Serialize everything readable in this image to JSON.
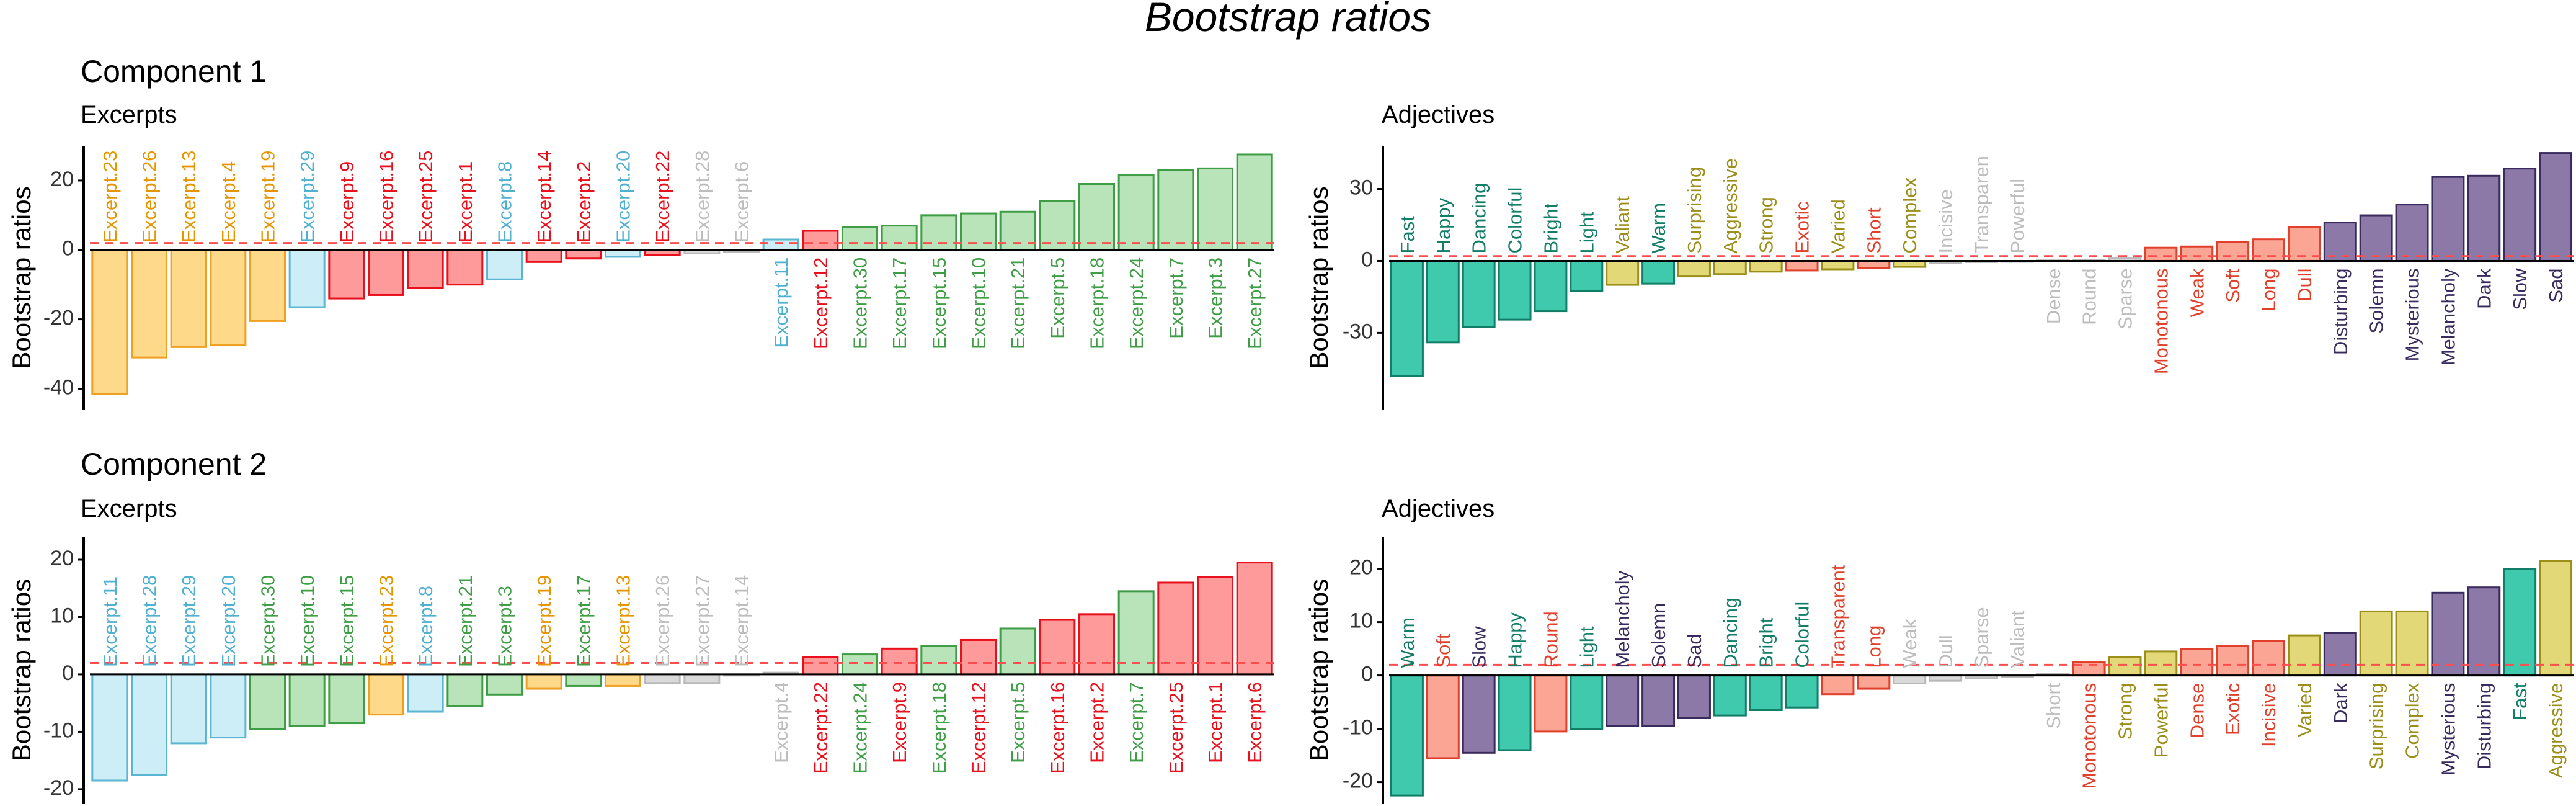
{
  "title": "Bootstrap ratios",
  "colors": {
    "orange": {
      "fill": "#ffd98a",
      "stroke": "#f0a020",
      "text": "#e69500"
    },
    "lightblue": {
      "fill": "#cdeef7",
      "stroke": "#5ab6d3",
      "text": "#4fb0d0"
    },
    "red": {
      "fill": "#ff9a9a",
      "stroke": "#e8101c",
      "text": "#e8101c"
    },
    "green": {
      "fill": "#b9e3b9",
      "stroke": "#3f9e45",
      "text": "#3f9e45"
    },
    "gray": {
      "fill": "#d9d9d9",
      "stroke": "#b8b8b8",
      "text": "#bdbdbd"
    },
    "teal": {
      "fill": "#3fcaae",
      "stroke": "#127e68",
      "text": "#127e68"
    },
    "olive": {
      "fill": "#e3d877",
      "stroke": "#9b8f1a",
      "text": "#9b8f1a"
    },
    "salmon": {
      "fill": "#fba595",
      "stroke": "#e0402c",
      "text": "#e0402c"
    },
    "purple": {
      "fill": "#8c79a8",
      "stroke": "#3a2b5e",
      "text": "#3a2b5e"
    }
  },
  "chart_data": [
    {
      "type": "bar",
      "section_title": "Component 1",
      "title": "Excerpts",
      "ylabel": "Bootstrap ratios",
      "ylim": [
        -46,
        30
      ],
      "yticks": [
        20,
        0,
        -20,
        -40
      ],
      "threshold": 2,
      "categories": [
        "Excerpt.23",
        "Excerpt.26",
        "Excerpt.13",
        "Excerpt.4",
        "Excerpt.19",
        "Excerpt.29",
        "Excerpt.9",
        "Excerpt.16",
        "Excerpt.25",
        "Excerpt.1",
        "Excerpt.8",
        "Excerpt.14",
        "Excerpt.2",
        "Excerpt.20",
        "Excerpt.22",
        "Excerpt.28",
        "Excerpt.6",
        "Excerpt.11",
        "Excerpt.12",
        "Excerpt.30",
        "Excerpt.17",
        "Excerpt.15",
        "Excerpt.10",
        "Excerpt.21",
        "Excerpt.5",
        "Excerpt.18",
        "Excerpt.24",
        "Excerpt.7",
        "Excerpt.3",
        "Excerpt.27"
      ],
      "labels": [
        "Excerpt.23",
        "Excerpt.26",
        "Excerpt.13",
        "Excerpt.4",
        "Excerpt.19",
        "Excerpt.29",
        "Excerpt.9",
        "Excerpt.16",
        "Excerpt.25",
        "Excerpt.1",
        "Excerpt.8",
        "Excerpt.14",
        "Excerpt.2",
        "Excerpt.20",
        "Excerpt.22",
        "Excerpt.28",
        "Excerpt.6",
        "Excerpt.11",
        "Excerpt.12",
        "Excerpt.30",
        "Excerpt.17",
        "Excerpt.15",
        "Excerpt.10",
        "Excerpt.21",
        "Excerpt.5",
        "Excerpt.18",
        "Excerpt.24",
        "Excerpt.7",
        "Excerpt.3",
        "Excerpt.27"
      ],
      "values": [
        -41.5,
        -31,
        -28,
        -27.5,
        -20.5,
        -16.5,
        -14,
        -13,
        -11,
        -10,
        -8.5,
        -3.5,
        -2.5,
        -2,
        -1.5,
        -1,
        -0.5,
        3,
        5.5,
        6.5,
        7,
        10,
        10.5,
        11,
        14,
        19,
        21.5,
        23,
        23.5,
        27.5
      ],
      "groups": [
        "orange",
        "orange",
        "orange",
        "orange",
        "orange",
        "lightblue",
        "red",
        "red",
        "red",
        "red",
        "lightblue",
        "red",
        "red",
        "lightblue",
        "red",
        "gray",
        "gray",
        "lightblue",
        "red",
        "green",
        "green",
        "green",
        "green",
        "green",
        "green",
        "green",
        "green",
        "green",
        "green",
        "green"
      ]
    },
    {
      "type": "bar",
      "title": "Adjectives",
      "ylabel": "Bootstrap ratios",
      "ylim": [
        -62,
        48
      ],
      "yticks": [
        30,
        0,
        -30
      ],
      "threshold": 2,
      "categories": [
        "Fast",
        "Happy",
        "Dancing",
        "Colorful",
        "Bright",
        "Light",
        "Valiant",
        "Warm",
        "Surprising",
        "Aggressive",
        "Strong",
        "Exotic",
        "Varied",
        "Short",
        "Complex",
        "Incisive",
        "Transparent",
        "Powerful",
        "Dense",
        "Round",
        "Sparse",
        "Monotonous",
        "Weak",
        "Soft",
        "Long",
        "Dull",
        "Disturbing",
        "Solemn",
        "Mysterious",
        "Melancholy",
        "Dark",
        "Slow",
        "Sad"
      ],
      "labels": [
        "Fast",
        "Happy",
        "Dancing",
        "Colorful",
        "Bright",
        "Light",
        "Valiant",
        "Warm",
        "Surprising",
        "Aggressive",
        "Strong",
        "Exotic",
        "Varied",
        "Short",
        "Complex",
        "Incisive",
        "Transparen",
        "Powerful",
        "Dense",
        "Round",
        "Sparse",
        "Monotonous",
        "Weak",
        "Soft",
        "Long",
        "Dull",
        "Disturbing",
        "Solemn",
        "Mysterious",
        "Melancholy",
        "Dark",
        "Slow",
        "Sad"
      ],
      "values": [
        -48,
        -34,
        -27.5,
        -24.5,
        -21,
        -12.5,
        -10,
        -9.5,
        -6.5,
        -5.5,
        -4.5,
        -4,
        -3.5,
        -3,
        -2.5,
        -1,
        -0.5,
        -0.3,
        0.2,
        0.5,
        1,
        5.5,
        6,
        8,
        9,
        14,
        16,
        19,
        23.5,
        35,
        35.5,
        38.5,
        45
      ],
      "groups": [
        "teal",
        "teal",
        "teal",
        "teal",
        "teal",
        "teal",
        "olive",
        "teal",
        "olive",
        "olive",
        "olive",
        "salmon",
        "olive",
        "salmon",
        "olive",
        "gray",
        "gray",
        "gray",
        "gray",
        "gray",
        "gray",
        "salmon",
        "salmon",
        "salmon",
        "salmon",
        "salmon",
        "purple",
        "purple",
        "purple",
        "purple",
        "purple",
        "purple",
        "purple"
      ]
    },
    {
      "type": "bar",
      "section_title": "Component 2",
      "title": "Excerpts",
      "ylabel": "Bootstrap ratios",
      "ylim": [
        -22.5,
        24
      ],
      "yticks": [
        20,
        10,
        0,
        -10,
        -20
      ],
      "threshold": 2,
      "categories": [
        "Excerpt.11",
        "Excerpt.28",
        "Excerpt.29",
        "Excerpt.20",
        "Excerpt.30",
        "Excerpt.10",
        "Excerpt.15",
        "Excerpt.23",
        "Excerpt.8",
        "Excerpt.21",
        "Excerpt.3",
        "Excerpt.19",
        "Excerpt.17",
        "Excerpt.13",
        "Excerpt.26",
        "Excerpt.27",
        "Excerpt.14",
        "Excerpt.4",
        "Excerpt.22",
        "Excerpt.24",
        "Excerpt.9",
        "Excerpt.18",
        "Excerpt.12",
        "Excerpt.5",
        "Excerpt.16",
        "Excerpt.2",
        "Excerpt.7",
        "Excerpt.25",
        "Excerpt.1",
        "Excerpt.6"
      ],
      "labels": [
        "Excerpt.11",
        "Excerpt.28",
        "Excerpt.29",
        "Excerpt.20",
        "Excerpt.30",
        "Excerpt.10",
        "Excerpt.15",
        "Excerpt.23",
        "Excerpt.8",
        "Excerpt.21",
        "Excerpt.3",
        "Excerpt.19",
        "Excerpt.17",
        "Excerpt.13",
        "Excerpt.26",
        "Excerpt.27",
        "Excerpt.14",
        "Excerpt.4",
        "Excerpt.22",
        "Excerpt.24",
        "Excerpt.9",
        "Excerpt.18",
        "Excerpt.12",
        "Excerpt.5",
        "Excerpt.16",
        "Excerpt.2",
        "Excerpt.7",
        "Excerpt.25",
        "Excerpt.1",
        "Excerpt.6"
      ],
      "values": [
        -18.5,
        -17.5,
        -12,
        -11,
        -9.5,
        -9,
        -8.5,
        -7,
        -6.5,
        -5.5,
        -3.5,
        -2.5,
        -2,
        -2,
        -1.5,
        -1.5,
        -0.2,
        0.3,
        3,
        3.5,
        4.5,
        5,
        6,
        8,
        9.5,
        10.5,
        14.5,
        16,
        17,
        19.5
      ],
      "groups": [
        "lightblue",
        "lightblue",
        "lightblue",
        "lightblue",
        "green",
        "green",
        "green",
        "orange",
        "lightblue",
        "green",
        "green",
        "orange",
        "green",
        "orange",
        "gray",
        "gray",
        "gray",
        "gray",
        "red",
        "green",
        "red",
        "green",
        "red",
        "green",
        "red",
        "red",
        "green",
        "red",
        "red",
        "red"
      ]
    },
    {
      "type": "bar",
      "title": "Adjectives",
      "ylabel": "Bootstrap ratios",
      "ylim": [
        -24,
        26
      ],
      "yticks": [
        20,
        10,
        0,
        -10,
        -20
      ],
      "threshold": 2,
      "categories": [
        "Warm",
        "Soft",
        "Slow",
        "Happy",
        "Round",
        "Light",
        "Melancholy",
        "Solemn",
        "Sad",
        "Dancing",
        "Bright",
        "Colorful",
        "Transparent",
        "Long",
        "Weak",
        "Dull",
        "Sparse",
        "Valiant",
        "Short",
        "Monotonous",
        "Strong",
        "Powerful",
        "Dense",
        "Exotic",
        "Incisive",
        "Varied",
        "Dark",
        "Surprising",
        "Complex",
        "Mysterious",
        "Disturbing",
        "Fast",
        "Aggressive"
      ],
      "labels": [
        "Warm",
        "Soft",
        "Slow",
        "Happy",
        "Round",
        "Light",
        "Melancholy",
        "Solemn",
        "Sad",
        "Dancing",
        "Bright",
        "Colorful",
        "Transparent",
        "Long",
        "Weak",
        "Dull",
        "Sparse",
        "Valiant",
        "Short",
        "Monotonous",
        "Strong",
        "Powerful",
        "Dense",
        "Exotic",
        "Incisive",
        "Varied",
        "Dark",
        "Surprising",
        "Complex",
        "Mysterious",
        "Disturbing",
        "Fast",
        "Aggressive"
      ],
      "values": [
        -22.5,
        -15.5,
        -14.5,
        -14,
        -10.5,
        -10,
        -9.5,
        -9.5,
        -8,
        -7.5,
        -6.5,
        -6,
        -3.5,
        -2.5,
        -1.5,
        -1,
        -0.5,
        -0.3,
        0.3,
        2.5,
        3.5,
        4.5,
        5,
        5.5,
        6.5,
        7.5,
        8,
        12,
        12,
        15.5,
        16.5,
        20,
        21.5
      ],
      "groups": [
        "teal",
        "salmon",
        "purple",
        "teal",
        "salmon",
        "teal",
        "purple",
        "purple",
        "purple",
        "teal",
        "teal",
        "teal",
        "salmon",
        "salmon",
        "gray",
        "gray",
        "gray",
        "gray",
        "gray",
        "salmon",
        "olive",
        "olive",
        "salmon",
        "salmon",
        "salmon",
        "olive",
        "purple",
        "olive",
        "olive",
        "purple",
        "purple",
        "teal",
        "olive"
      ]
    }
  ]
}
